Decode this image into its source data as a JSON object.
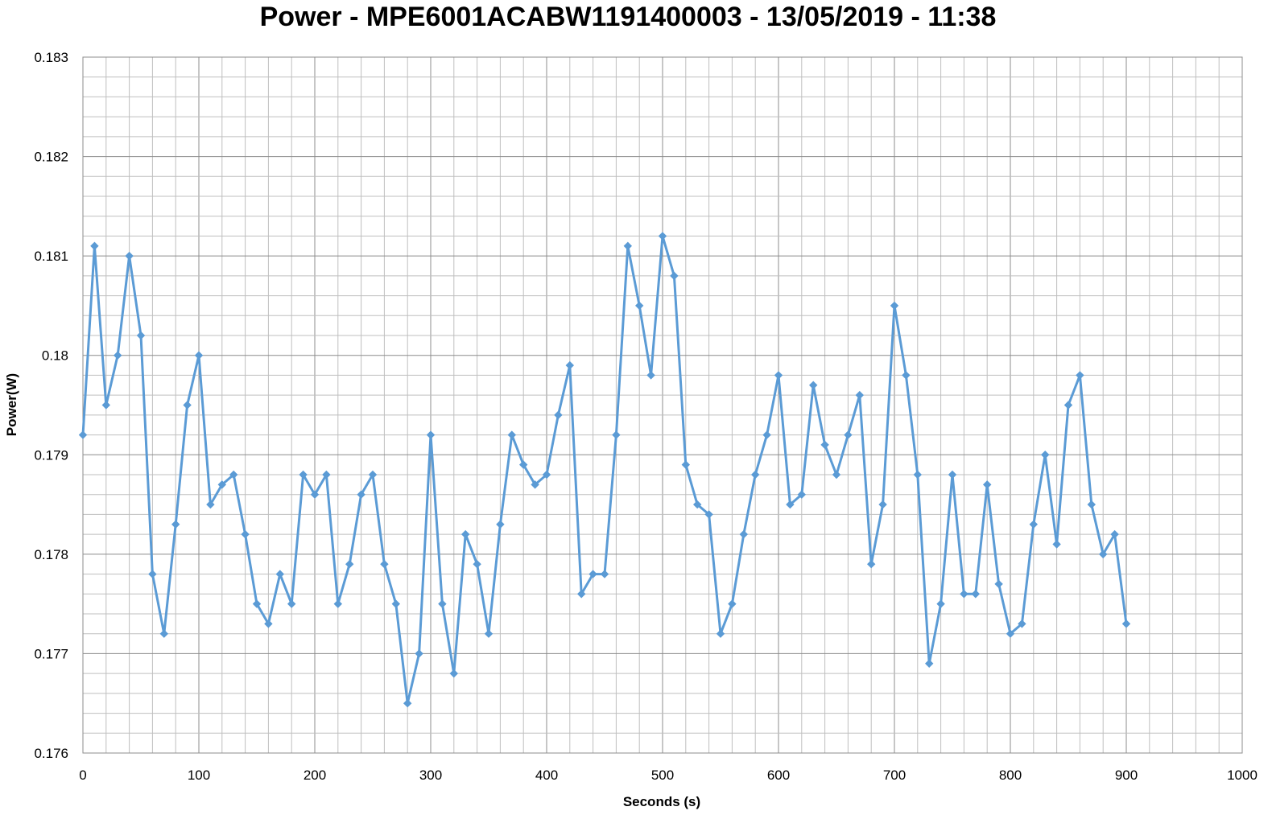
{
  "chart_data": {
    "type": "line",
    "title": "Power - MPE6001ACABW1191400003 - 13/05/2019 - 11:38",
    "xlabel": "Seconds (s)",
    "ylabel": "Power(W)",
    "xlim": [
      0,
      1000
    ],
    "ylim": [
      0.176,
      0.183
    ],
    "x_ticks": [
      "0",
      "100",
      "200",
      "300",
      "400",
      "500",
      "600",
      "700",
      "800",
      "900",
      "1000"
    ],
    "y_ticks": [
      "0.176",
      "0.177",
      "0.178",
      "0.179",
      "0.18",
      "0.181",
      "0.182",
      "0.183"
    ],
    "grid": true,
    "legend": "none",
    "marker": "diamond",
    "series_color": "#5b9bd5",
    "x": [
      0,
      10,
      20,
      30,
      40,
      50,
      60,
      70,
      80,
      90,
      100,
      110,
      120,
      130,
      140,
      150,
      160,
      170,
      180,
      190,
      200,
      210,
      220,
      230,
      240,
      250,
      260,
      270,
      280,
      290,
      300,
      310,
      320,
      330,
      340,
      350,
      360,
      370,
      380,
      390,
      400,
      410,
      420,
      430,
      440,
      450,
      460,
      470,
      480,
      490,
      500,
      510,
      520,
      530,
      540,
      550,
      560,
      570,
      580,
      590,
      600,
      610,
      620,
      630,
      640,
      650,
      660,
      670,
      680,
      690,
      700,
      710,
      720,
      730,
      740,
      750,
      760,
      770,
      780,
      790,
      800,
      810,
      820,
      830,
      840,
      850,
      860,
      870,
      880,
      890,
      900
    ],
    "values": [
      0.1792,
      0.1811,
      0.1795,
      0.18,
      0.181,
      0.1802,
      0.1778,
      0.1772,
      0.1783,
      0.1795,
      0.18,
      0.1785,
      0.1787,
      0.1788,
      0.1782,
      0.1775,
      0.1773,
      0.1778,
      0.1775,
      0.1788,
      0.1786,
      0.1788,
      0.1775,
      0.1779,
      0.1786,
      0.1788,
      0.1779,
      0.1775,
      0.1765,
      0.177,
      0.1792,
      0.1775,
      0.1768,
      0.1782,
      0.1779,
      0.1772,
      0.1783,
      0.1792,
      0.1789,
      0.1787,
      0.1788,
      0.1794,
      0.1799,
      0.1776,
      0.1778,
      0.1778,
      0.1792,
      0.1811,
      0.1805,
      0.1798,
      0.1812,
      0.1808,
      0.1789,
      0.1785,
      0.1784,
      0.1772,
      0.1775,
      0.1782,
      0.1788,
      0.1792,
      0.1798,
      0.1785,
      0.1786,
      0.1797,
      0.1791,
      0.1788,
      0.1792,
      0.1796,
      0.1779,
      0.1785,
      0.1805,
      0.1798,
      0.1788,
      0.1769,
      0.1775,
      0.1788,
      0.1776,
      0.1776,
      0.1787,
      0.1777,
      0.1772,
      0.1773,
      0.1783,
      0.179,
      0.1781,
      0.1795,
      0.1798,
      0.1785,
      0.178,
      0.1782,
      0.1773
    ]
  }
}
